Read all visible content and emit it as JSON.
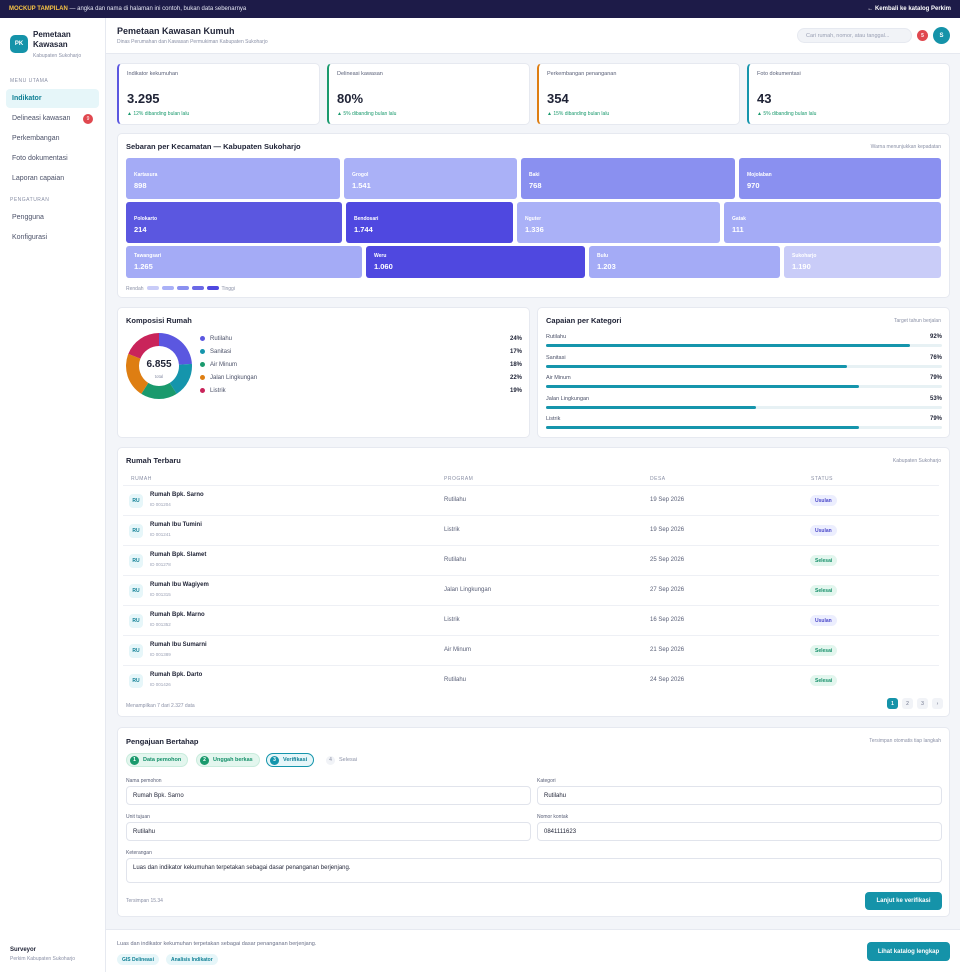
{
  "banner": {
    "tag": "MOCKUP TAMPILAN",
    "note": "— angka dan nama di halaman ini contoh, bukan data sebenarnya",
    "back": "← Kembali ke katalog Perkim"
  },
  "brand": {
    "logo": "PK",
    "name_line1": "Pemetaan",
    "name_line2": "Kawasan",
    "sub": "Kabupaten Sukoharjo"
  },
  "nav": {
    "main_section": "MENU UTAMA",
    "items": [
      {
        "label": "Indikator",
        "badge": ""
      },
      {
        "label": "Delineasi kawasan",
        "badge": "9"
      },
      {
        "label": "Perkembangan",
        "badge": ""
      },
      {
        "label": "Foto dokumentasi",
        "badge": ""
      },
      {
        "label": "Laporan capaian",
        "badge": ""
      }
    ],
    "settings_section": "PENGATURAN",
    "settings": [
      {
        "label": "Pengguna"
      },
      {
        "label": "Konfigurasi"
      }
    ]
  },
  "sidebar_user": {
    "name": "Surveyor",
    "role": "Perkim Kabupaten Sukoharjo"
  },
  "header": {
    "title": "Pemetaan Kawasan Kumuh",
    "subtitle": "Dinas Perumahan dan Kawasan Permukiman Kabupaten Sukoharjo",
    "search_placeholder": "Cari rumah, nomor, atau tanggal...",
    "notif_count": "5",
    "avatar": "S"
  },
  "kpis": [
    {
      "label": "Indikator kekumuhan",
      "value": "3.295",
      "delta": "▲ 12% dibanding bulan lalu",
      "color": "#5b57e0"
    },
    {
      "label": "Delineasi kawasan",
      "value": "80%",
      "delta": "▲ 5% dibanding bulan lalu",
      "color": "#1a9a6d"
    },
    {
      "label": "Perkembangan penanganan",
      "value": "354",
      "delta": "▲ 15% dibanding bulan lalu",
      "color": "#de7e12"
    },
    {
      "label": "Foto dokumentasi",
      "value": "43",
      "delta": "▲ 5% dibanding bulan lalu",
      "color": "#1595ac"
    }
  ],
  "treemap": {
    "title": "Sebaran per Kecamatan — Kabupaten Sukoharjo",
    "hint": "Warna menunjukkan kepadatan",
    "low": "Rendah",
    "high": "Tinggi",
    "scale_colors": [
      "#c9ccf8",
      "#aab1f7",
      "#8a90f0",
      "#6b69e6",
      "#4f48e0"
    ],
    "tiles": [
      {
        "name": "Kartasura",
        "value": "898",
        "color": "#a4abf6"
      },
      {
        "name": "Grogol",
        "value": "1.541",
        "color": "#aab1f7"
      },
      {
        "name": "Baki",
        "value": "768",
        "color": "#8a90f0"
      },
      {
        "name": "Mojolaban",
        "value": "970",
        "color": "#8a90f0"
      },
      {
        "name": "Polokarto",
        "value": "214",
        "color": "#5b57e0"
      },
      {
        "name": "Bendosari",
        "value": "1.744",
        "color": "#4f48e0"
      },
      {
        "name": "Nguter",
        "value": "1.336",
        "color": "#aab1f7"
      },
      {
        "name": "Gatak",
        "value": "111",
        "color": "#a4abf6"
      },
      {
        "name": "Tawangsari",
        "value": "1.265",
        "color": "#a4abf6"
      },
      {
        "name": "Weru",
        "value": "1.060",
        "color": "#4f48e0"
      },
      {
        "name": "Bulu",
        "value": "1.203",
        "color": "#a4abf6"
      },
      {
        "name": "Sukoharjo",
        "value": "1.190",
        "color": "#c9ccf8"
      }
    ]
  },
  "composition": {
    "title": "Komposisi Rumah",
    "total": "6.855",
    "total_label": "total",
    "items": [
      {
        "label": "Rutilahu",
        "pct": "24%",
        "value": 24,
        "color": "#5b57e0"
      },
      {
        "label": "Sanitasi",
        "pct": "17%",
        "value": 17,
        "color": "#1595ac"
      },
      {
        "label": "Air Minum",
        "pct": "18%",
        "value": 18,
        "color": "#1a9a6d"
      },
      {
        "label": "Jalan Lingkungan",
        "pct": "22%",
        "value": 22,
        "color": "#de7e12"
      },
      {
        "label": "Listrik",
        "pct": "19%",
        "value": 19,
        "color": "#c9245a"
      }
    ]
  },
  "achievement": {
    "title": "Capaian per Kategori",
    "hint": "Target tahun berjalan",
    "items": [
      {
        "label": "Rutilahu",
        "pct": "92%",
        "value": 92
      },
      {
        "label": "Sanitasi",
        "pct": "76%",
        "value": 76
      },
      {
        "label": "Air Minum",
        "pct": "79%",
        "value": 79
      },
      {
        "label": "Jalan Lingkungan",
        "pct": "53%",
        "value": 53
      },
      {
        "label": "Listrik",
        "pct": "79%",
        "value": 79
      }
    ]
  },
  "table": {
    "title": "Rumah Terbaru",
    "hint": "Kabupaten Sukoharjo",
    "columns": [
      "RUMAH",
      "PROGRAM",
      "DESA",
      "STATUS"
    ],
    "rows": [
      {
        "icon": "RU",
        "name": "Rumah Bpk. Sarno",
        "id": "ID 001204",
        "program": "Rutilahu",
        "date": "19 Sep 2026",
        "status": "Usulan",
        "kind": "usulan"
      },
      {
        "icon": "RU",
        "name": "Rumah Ibu Tumini",
        "id": "ID 001241",
        "program": "Listrik",
        "date": "19 Sep 2026",
        "status": "Usulan",
        "kind": "usulan"
      },
      {
        "icon": "RU",
        "name": "Rumah Bpk. Slamet",
        "id": "ID 001278",
        "program": "Rutilahu",
        "date": "25 Sep 2026",
        "status": "Selesai",
        "kind": "selesai"
      },
      {
        "icon": "RU",
        "name": "Rumah Ibu Wagiyem",
        "id": "ID 001315",
        "program": "Jalan Lingkungan",
        "date": "27 Sep 2026",
        "status": "Selesai",
        "kind": "selesai"
      },
      {
        "icon": "RU",
        "name": "Rumah Bpk. Marno",
        "id": "ID 001352",
        "program": "Listrik",
        "date": "16 Sep 2026",
        "status": "Usulan",
        "kind": "usulan"
      },
      {
        "icon": "RU",
        "name": "Rumah Ibu Sumarni",
        "id": "ID 001389",
        "program": "Air Minum",
        "date": "21 Sep 2026",
        "status": "Selesai",
        "kind": "selesai"
      },
      {
        "icon": "RU",
        "name": "Rumah Bpk. Darto",
        "id": "ID 001426",
        "program": "Rutilahu",
        "date": "24 Sep 2026",
        "status": "Selesai",
        "kind": "selesai"
      }
    ],
    "footer": "Menampilkan 7 dari 2.327 data",
    "pages": [
      "1",
      "2",
      "3",
      "›"
    ]
  },
  "form": {
    "title": "Pengajuan Bertahap",
    "hint": "Tersimpan otomatis tiap langkah",
    "steps": [
      {
        "num": "1",
        "label": "Data pemohon",
        "state": "done"
      },
      {
        "num": "2",
        "label": "Unggah berkas",
        "state": "done"
      },
      {
        "num": "3",
        "label": "Verifikasi",
        "state": "cur"
      },
      {
        "num": "4",
        "label": "Selesai",
        "state": "todo"
      }
    ],
    "applicant_label": "Nama pemohon",
    "applicant_value": "Rumah Bpk. Sarno",
    "category_label": "Kategori",
    "category_value": "Rutilahu",
    "unit_label": "Unit tujuan",
    "unit_value": "Rutilahu",
    "contact_label": "Nomor kontak",
    "contact_value": "0841111623",
    "notes_label": "Keterangan",
    "notes_value": "Luas dan indikator kekumuhan terpetakan sebagai dasar penanganan berjenjang.",
    "saved": "Tersimpan 15.34",
    "submit": "Lanjut ke verifikasi"
  },
  "footer": {
    "text": "Luas dan indikator kekumuhan terpetakan sebagai dasar penanganan berjenjang.",
    "chip1": "GIS Delineasi",
    "chip2": "Analisis Indikator",
    "button": "Lihat katalog lengkap"
  }
}
